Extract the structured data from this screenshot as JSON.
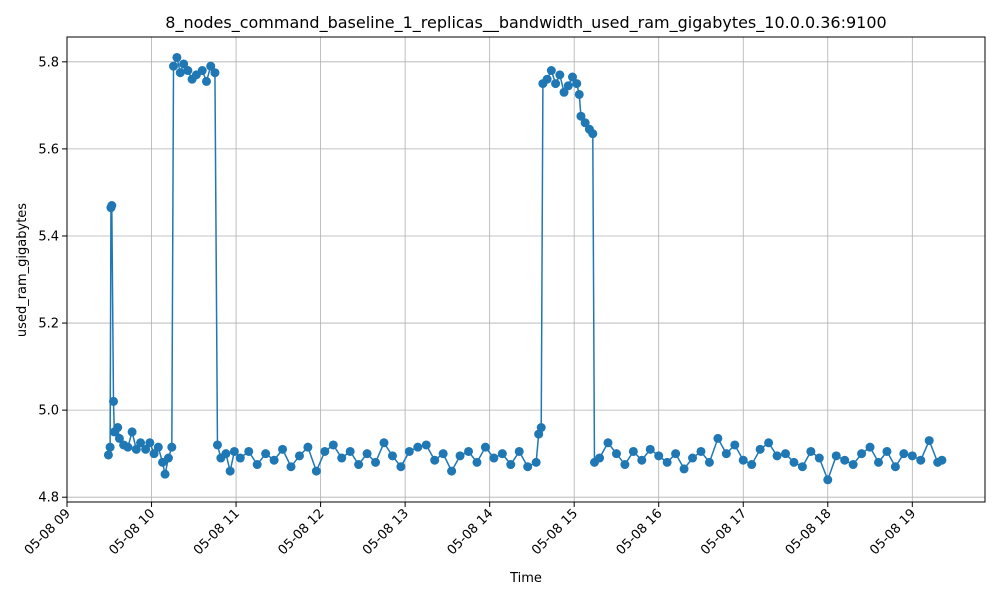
{
  "chart_data": {
    "type": "line",
    "title": "8_nodes_command_baseline_1_replicas__bandwidth_used_ram_gigabytes_10.0.0.36:9100",
    "x_label": "Time",
    "y_label": "used_ram_gigabytes",
    "color": "#1f77b4",
    "grid": true,
    "xlim": [
      9.0,
      19.86
    ],
    "ylim": [
      4.789,
      5.857
    ],
    "xticks": [
      {
        "value": 9,
        "label": "05-08 09"
      },
      {
        "value": 10,
        "label": "05-08 10"
      },
      {
        "value": 11,
        "label": "05-08 11"
      },
      {
        "value": 12,
        "label": "05-08 12"
      },
      {
        "value": 13,
        "label": "05-08 13"
      },
      {
        "value": 14,
        "label": "05-08 14"
      },
      {
        "value": 15,
        "label": "05-08 15"
      },
      {
        "value": 16,
        "label": "05-08 16"
      },
      {
        "value": 17,
        "label": "05-08 17"
      },
      {
        "value": 18,
        "label": "05-08 18"
      },
      {
        "value": 19,
        "label": "05-08 19"
      }
    ],
    "yticks": [
      4.8,
      {
        "value": 5,
        "label": "5.0"
      },
      5.2,
      5.4,
      5.6,
      5.8
    ],
    "x": [
      9.49,
      9.51,
      9.52,
      9.53,
      9.55,
      9.56,
      9.6,
      9.62,
      9.67,
      9.72,
      9.77,
      9.82,
      9.87,
      9.93,
      9.98,
      10.03,
      10.08,
      10.13,
      10.16,
      10.2,
      10.24,
      10.26,
      10.3,
      10.34,
      10.38,
      10.43,
      10.48,
      10.53,
      10.6,
      10.65,
      10.7,
      10.75,
      10.78,
      10.82,
      10.88,
      10.93,
      10.98,
      11.05,
      11.15,
      11.25,
      11.35,
      11.45,
      11.55,
      11.65,
      11.75,
      11.85,
      11.95,
      12.05,
      12.15,
      12.25,
      12.35,
      12.45,
      12.55,
      12.65,
      12.75,
      12.85,
      12.95,
      13.05,
      13.15,
      13.25,
      13.35,
      13.45,
      13.55,
      13.65,
      13.75,
      13.85,
      13.95,
      14.05,
      14.15,
      14.25,
      14.35,
      14.45,
      14.55,
      14.58,
      14.61,
      14.63,
      14.68,
      14.73,
      14.78,
      14.83,
      14.88,
      14.93,
      14.98,
      15.03,
      15.06,
      15.08,
      15.13,
      15.18,
      15.22,
      15.24,
      15.3,
      15.4,
      15.5,
      15.6,
      15.7,
      15.8,
      15.9,
      16.0,
      16.1,
      16.2,
      16.3,
      16.4,
      16.5,
      16.6,
      16.7,
      16.8,
      16.9,
      17.0,
      17.1,
      17.2,
      17.3,
      17.4,
      17.5,
      17.6,
      17.7,
      17.8,
      17.9,
      18.0,
      18.1,
      18.2,
      18.3,
      18.4,
      18.5,
      18.6,
      18.7,
      18.8,
      18.9,
      19.0,
      19.1,
      19.2,
      19.3,
      19.35
    ],
    "values": [
      4.897,
      4.915,
      5.465,
      5.47,
      5.02,
      4.95,
      4.96,
      4.935,
      4.92,
      4.915,
      4.95,
      4.91,
      4.925,
      4.91,
      4.925,
      4.9,
      4.915,
      4.88,
      4.853,
      4.89,
      4.915,
      5.79,
      5.81,
      5.775,
      5.795,
      5.78,
      5.76,
      5.77,
      5.78,
      5.755,
      5.79,
      5.775,
      4.92,
      4.89,
      4.9,
      4.86,
      4.905,
      4.89,
      4.905,
      4.875,
      4.9,
      4.885,
      4.91,
      4.87,
      4.895,
      4.915,
      4.86,
      4.905,
      4.92,
      4.89,
      4.905,
      4.875,
      4.9,
      4.88,
      4.925,
      4.895,
      4.87,
      4.905,
      4.915,
      4.92,
      4.885,
      4.9,
      4.86,
      4.895,
      4.905,
      4.88,
      4.915,
      4.89,
      4.9,
      4.875,
      4.905,
      4.87,
      4.88,
      4.945,
      4.96,
      5.75,
      5.76,
      5.78,
      5.75,
      5.77,
      5.73,
      5.745,
      5.765,
      5.75,
      5.725,
      5.675,
      5.66,
      5.645,
      5.635,
      4.88,
      4.89,
      4.925,
      4.9,
      4.875,
      4.905,
      4.885,
      4.91,
      4.895,
      4.88,
      4.9,
      4.865,
      4.89,
      4.905,
      4.88,
      4.935,
      4.9,
      4.92,
      4.885,
      4.875,
      4.91,
      4.925,
      4.895,
      4.9,
      4.88,
      4.87,
      4.905,
      4.89,
      4.84,
      4.895,
      4.885,
      4.875,
      4.9,
      4.915,
      4.88,
      4.905,
      4.87,
      4.9,
      4.895,
      4.885,
      4.93,
      4.88,
      4.885
    ]
  }
}
